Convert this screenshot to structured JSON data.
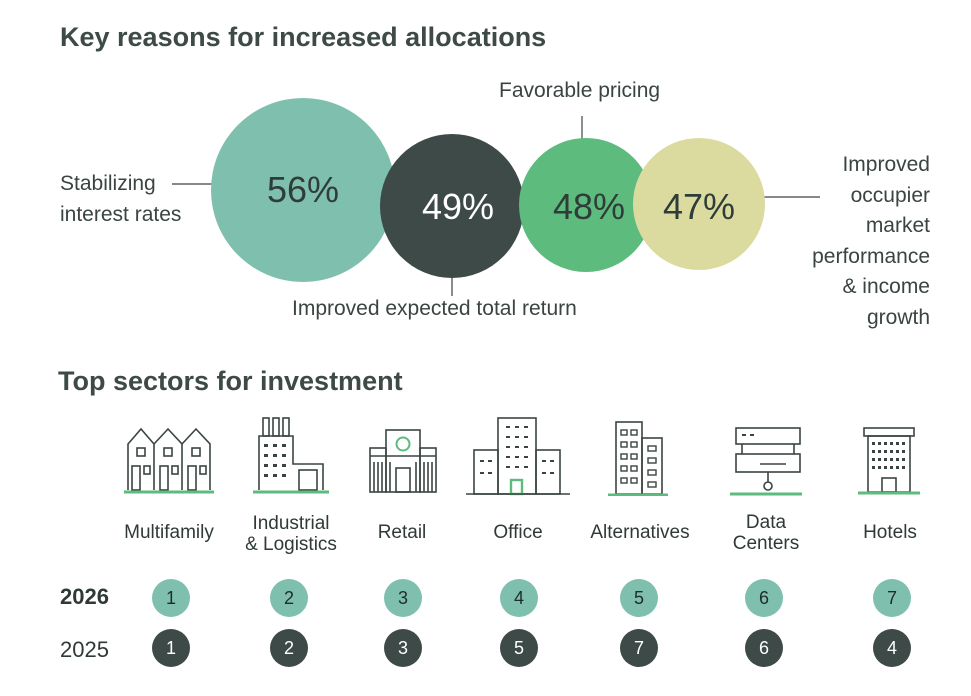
{
  "titles": {
    "reasons": "Key reasons for increased allocations",
    "sectors": "Top sectors for investment"
  },
  "chart_data": [
    {
      "type": "bubble",
      "title": "Key reasons for increased allocations",
      "unit": "%",
      "items": [
        {
          "label": "Stabilizing interest rates",
          "label_lines": [
            "Stabilizing",
            "interest rates"
          ],
          "value": 56,
          "display": "56%",
          "color": "#7fbfad",
          "text_color": "#2f3d39"
        },
        {
          "label": "Improved expected total return",
          "label_lines": [
            "Improved expected total return"
          ],
          "value": 49,
          "display": "49%",
          "color": "#3e4a48",
          "text_color": "#ffffff"
        },
        {
          "label": "Favorable pricing",
          "label_lines": [
            "Favorable pricing"
          ],
          "value": 48,
          "display": "48%",
          "color": "#5dbb7e",
          "text_color": "#2f3d39"
        },
        {
          "label": "Improved occupier market performance & income growth",
          "label_lines": [
            "Improved",
            "occupier",
            "market",
            "performance",
            "& income",
            "growth"
          ],
          "value": 47,
          "display": "47%",
          "color": "#dcdb9f",
          "text_color": "#2f3d39"
        }
      ]
    },
    {
      "type": "table",
      "title": "Top sectors for investment",
      "columns": [
        {
          "sector": "Multifamily",
          "lines": [
            "Multifamily"
          ],
          "icon": "multifamily-icon"
        },
        {
          "sector": "Industrial & Logistics",
          "lines": [
            "Industrial",
            "& Logistics"
          ],
          "icon": "factory-icon"
        },
        {
          "sector": "Retail",
          "lines": [
            "Retail"
          ],
          "icon": "retail-store-icon"
        },
        {
          "sector": "Office",
          "lines": [
            "Office"
          ],
          "icon": "office-building-icon"
        },
        {
          "sector": "Alternatives",
          "lines": [
            "Alternatives"
          ],
          "icon": "tower-building-icon"
        },
        {
          "sector": "Data Centers",
          "lines": [
            "Data",
            "Centers"
          ],
          "icon": "server-rack-icon"
        },
        {
          "sector": "Hotels",
          "lines": [
            "Hotels"
          ],
          "icon": "hotel-icon"
        }
      ],
      "rows": [
        {
          "year": "2026",
          "ranks": [
            "1",
            "2",
            "3",
            "4",
            "5",
            "6",
            "7"
          ],
          "color": "#7fbfad"
        },
        {
          "year": "2025",
          "ranks": [
            "1",
            "2",
            "3",
            "5",
            "7",
            "6",
            "4"
          ],
          "color": "#3e4a48"
        }
      ]
    }
  ]
}
